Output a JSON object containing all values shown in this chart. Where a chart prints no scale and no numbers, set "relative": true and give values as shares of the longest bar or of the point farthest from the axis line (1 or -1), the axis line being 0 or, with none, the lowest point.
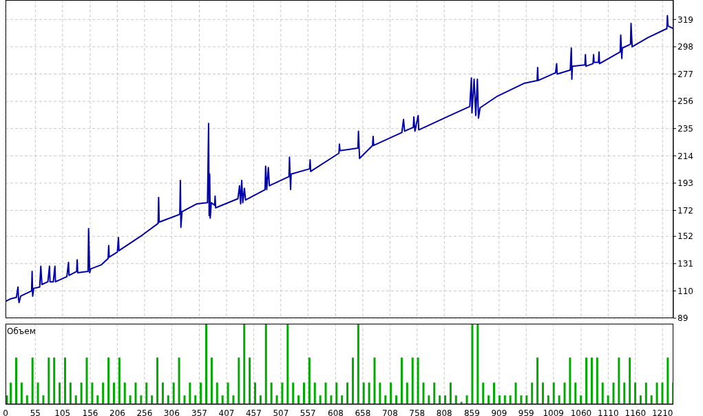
{
  "chart_data": [
    {
      "type": "line",
      "color": "#0000aa",
      "xlim": [
        0,
        1230
      ],
      "ylim": [
        89,
        334
      ],
      "grid": true,
      "tick_labels": "y",
      "xticks": [
        0,
        55,
        105,
        156,
        206,
        256,
        306,
        357,
        407,
        457,
        507,
        557,
        608,
        658,
        708,
        758,
        808,
        859,
        909,
        959,
        1009,
        1060,
        1110,
        1160,
        1210
      ],
      "yticks": [
        89,
        110,
        131,
        152,
        172,
        193,
        214,
        235,
        256,
        277,
        298,
        319
      ],
      "x": [
        0,
        10,
        20,
        23,
        24,
        25,
        28,
        48,
        49,
        50,
        52,
        63,
        65,
        67,
        78,
        81,
        82,
        88,
        91,
        92,
        113,
        116,
        117,
        131,
        132,
        133,
        152,
        153,
        155,
        157,
        176,
        189,
        190,
        191,
        206,
        208,
        209,
        252,
        281,
        282,
        283,
        321,
        322,
        323,
        325,
        352,
        372,
        374,
        375,
        376,
        377,
        379,
        385,
        386,
        387,
        428,
        431,
        433,
        435,
        437,
        440,
        442,
        478,
        479,
        481,
        484,
        486,
        522,
        523,
        525,
        526,
        560,
        561,
        562,
        614,
        615,
        616,
        649,
        650,
        652,
        676,
        677,
        678,
        730,
        733,
        735,
        751,
        752,
        754,
        760,
        761,
        818,
        855,
        858,
        859,
        863,
        866,
        869,
        871,
        874,
        906,
        956,
        979,
        980,
        981,
        1013,
        1015,
        1016,
        1040,
        1042,
        1043,
        1044,
        1067,
        1068,
        1069,
        1082,
        1083,
        1084,
        1092,
        1093,
        1094,
        1132,
        1133,
        1135,
        1136,
        1151,
        1152,
        1154,
        1183,
        1218,
        1219,
        1220,
        1230
      ],
      "values": [
        102,
        104,
        105,
        113,
        104,
        101,
        106,
        110,
        125,
        106,
        112,
        113,
        129,
        115,
        117,
        129,
        117,
        117,
        129,
        117,
        121,
        132,
        122,
        125,
        134,
        124,
        125,
        158,
        124,
        127,
        130,
        135,
        145,
        136,
        140,
        151,
        141,
        153,
        162,
        182,
        163,
        169,
        195,
        159,
        171,
        177,
        178,
        239,
        168,
        200,
        166,
        178,
        176,
        183,
        174,
        181,
        191,
        177,
        195,
        178,
        189,
        180,
        188,
        206,
        188,
        205,
        191,
        198,
        213,
        188,
        200,
        204,
        211,
        202,
        216,
        223,
        218,
        220,
        233,
        212,
        222,
        229,
        222,
        232,
        242,
        233,
        236,
        244,
        233,
        245,
        234,
        245,
        252,
        274,
        247,
        273,
        245,
        273,
        243,
        251,
        260,
        270,
        272,
        282,
        272,
        278,
        285,
        277,
        280,
        297,
        273,
        283,
        284,
        292,
        283,
        285,
        292,
        286,
        286,
        294,
        285,
        294,
        307,
        289,
        297,
        300,
        316,
        298,
        305,
        312,
        322,
        314,
        312
      ]
    },
    {
      "type": "bar",
      "relative": true,
      "title": "Объем",
      "color": "#00aa00",
      "xlim": [
        0,
        1230
      ],
      "grid": "x",
      "tick_labels": "x",
      "xticks": [
        0,
        55,
        105,
        156,
        206,
        256,
        306,
        357,
        407,
        457,
        507,
        557,
        608,
        658,
        708,
        758,
        808,
        859,
        909,
        959,
        1009,
        1060,
        1110,
        1160,
        1210
      ],
      "x": [
        3,
        10,
        20,
        30,
        40,
        50,
        60,
        70,
        80,
        90,
        100,
        110,
        120,
        130,
        140,
        150,
        160,
        170,
        180,
        190,
        200,
        210,
        220,
        230,
        240,
        250,
        260,
        270,
        280,
        290,
        300,
        310,
        320,
        330,
        340,
        350,
        360,
        370,
        380,
        390,
        400,
        410,
        420,
        430,
        440,
        450,
        460,
        470,
        480,
        490,
        500,
        510,
        520,
        530,
        540,
        550,
        560,
        570,
        580,
        590,
        600,
        610,
        620,
        630,
        640,
        650,
        660,
        670,
        680,
        690,
        700,
        710,
        720,
        730,
        740,
        750,
        760,
        770,
        780,
        790,
        800,
        810,
        820,
        830,
        840,
        850,
        860,
        870,
        880,
        890,
        900,
        910,
        920,
        930,
        940,
        950,
        960,
        970,
        980,
        990,
        1000,
        1010,
        1020,
        1030,
        1040,
        1050,
        1060,
        1070,
        1080,
        1090,
        1100,
        1110,
        1120,
        1130,
        1140,
        1150,
        1160,
        1170,
        1180,
        1190,
        1200,
        1210,
        1220,
        1230
      ],
      "values": [
        0.11,
        0.27,
        0.58,
        0.27,
        0.11,
        0.58,
        0.27,
        0.11,
        0.58,
        0.58,
        0.27,
        0.58,
        0.27,
        0.11,
        0.27,
        0.58,
        0.27,
        0.11,
        0.27,
        0.58,
        0.27,
        0.58,
        0.27,
        0.11,
        0.27,
        0.11,
        0.27,
        0.11,
        0.58,
        0.27,
        0.11,
        0.27,
        0.58,
        0.11,
        0.27,
        0.11,
        0.27,
        1.0,
        0.58,
        0.27,
        0.11,
        0.27,
        0.11,
        0.58,
        1.0,
        0.58,
        0.27,
        0.11,
        1.0,
        0.27,
        0.11,
        0.27,
        1.0,
        0.27,
        0.11,
        0.27,
        0.58,
        0.27,
        0.11,
        0.27,
        0.11,
        0.27,
        0.11,
        0.27,
        0.58,
        1.0,
        0.27,
        0.27,
        0.58,
        0.27,
        0.11,
        0.27,
        0.11,
        0.58,
        0.27,
        0.58,
        0.58,
        0.27,
        0.11,
        0.27,
        0.11,
        0.11,
        0.27,
        0.11,
        0.03,
        0.11,
        1.0,
        1.0,
        0.27,
        0.11,
        0.27,
        0.11,
        0.11,
        0.11,
        0.27,
        0.11,
        0.11,
        0.27,
        0.58,
        0.27,
        0.11,
        0.27,
        0.11,
        0.27,
        0.58,
        0.27,
        0.11,
        0.58,
        0.58,
        0.58,
        0.27,
        0.11,
        0.27,
        0.58,
        0.27,
        0.58,
        0.27,
        0.11,
        0.27,
        0.11,
        0.27,
        0.27,
        0.58,
        0.27
      ]
    }
  ]
}
